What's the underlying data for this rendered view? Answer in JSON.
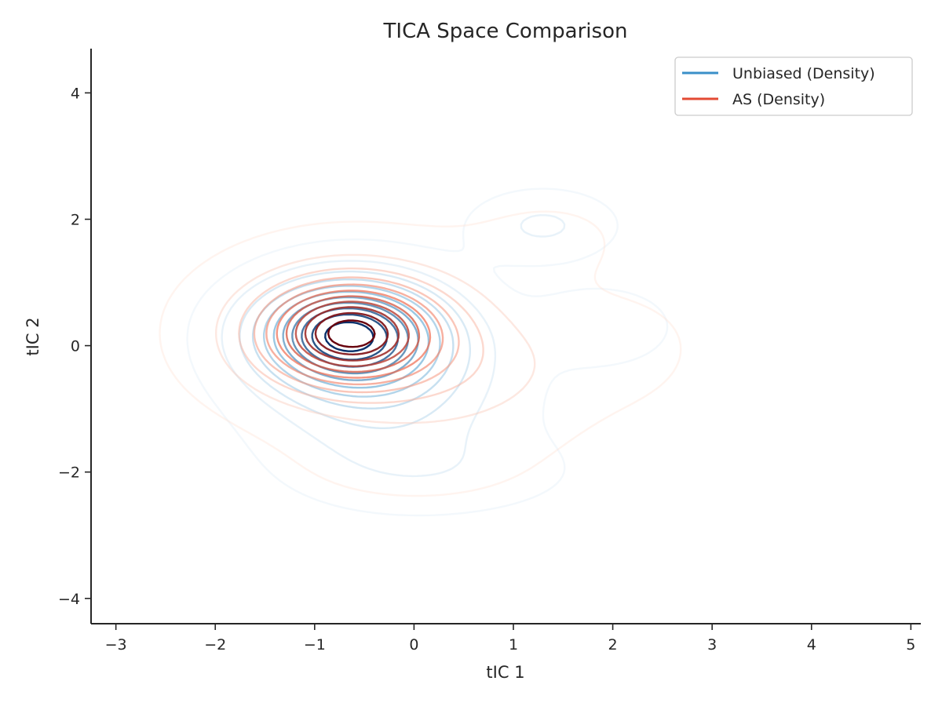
{
  "chart_data": {
    "type": "contour",
    "title": "TICA Space Comparison",
    "xlabel": "tIC 1",
    "ylabel": "tIC 2",
    "xlim": [
      -3.25,
      5.1
    ],
    "ylim": [
      -4.4,
      4.7
    ],
    "xticks": [
      -3,
      -2,
      -1,
      0,
      1,
      2,
      3,
      4,
      5
    ],
    "yticks": [
      -4,
      -2,
      0,
      2,
      4
    ],
    "xtick_labels": [
      "−3",
      "−2",
      "−1",
      "0",
      "1",
      "2",
      "3",
      "4",
      "5"
    ],
    "ytick_labels": [
      "−4",
      "−2",
      "0",
      "2",
      "4"
    ],
    "grid": false,
    "legend_position": "top-right",
    "series": [
      {
        "name": "Unbiased (Density)",
        "kind": "kde-contours",
        "color": "#3a8fc8",
        "colormap": "Blues",
        "levels": 11,
        "components": [
          {
            "cx": -0.7,
            "cy": 0.2,
            "sx": 0.6,
            "sy": 0.55,
            "w": 1.0
          },
          {
            "cx": -0.3,
            "cy": -0.5,
            "sx": 0.8,
            "sy": 0.9,
            "w": 0.33
          },
          {
            "cx": 1.3,
            "cy": 1.9,
            "sx": 0.45,
            "sy": 0.35,
            "w": 0.17
          },
          {
            "cx": 1.9,
            "cy": 0.3,
            "sx": 0.45,
            "sy": 0.4,
            "w": 0.12
          },
          {
            "cx": 0.3,
            "cy": -2.0,
            "sx": 0.9,
            "sy": 0.45,
            "w": 0.09
          }
        ]
      },
      {
        "name": "AS (Density)",
        "kind": "kde-contours",
        "color": "#e34a33",
        "colormap": "Reds",
        "levels": 11,
        "components": [
          {
            "cx": -0.65,
            "cy": 0.2,
            "sx": 0.55,
            "sy": 0.5,
            "w": 1.0
          },
          {
            "cx": -0.6,
            "cy": 0.2,
            "sx": 1.0,
            "sy": 0.9,
            "w": 0.3
          },
          {
            "cx": 0.6,
            "cy": -0.5,
            "sx": 0.9,
            "sy": 0.75,
            "w": 0.14
          },
          {
            "cx": 1.4,
            "cy": 1.7,
            "sx": 0.6,
            "sy": 0.5,
            "w": 0.06
          },
          {
            "cx": 2.2,
            "cy": 0.0,
            "sx": 0.5,
            "sy": 0.6,
            "w": 0.06
          },
          {
            "cx": 0.0,
            "cy": -2.0,
            "sx": 1.0,
            "sy": 0.5,
            "w": 0.05
          }
        ]
      }
    ]
  }
}
